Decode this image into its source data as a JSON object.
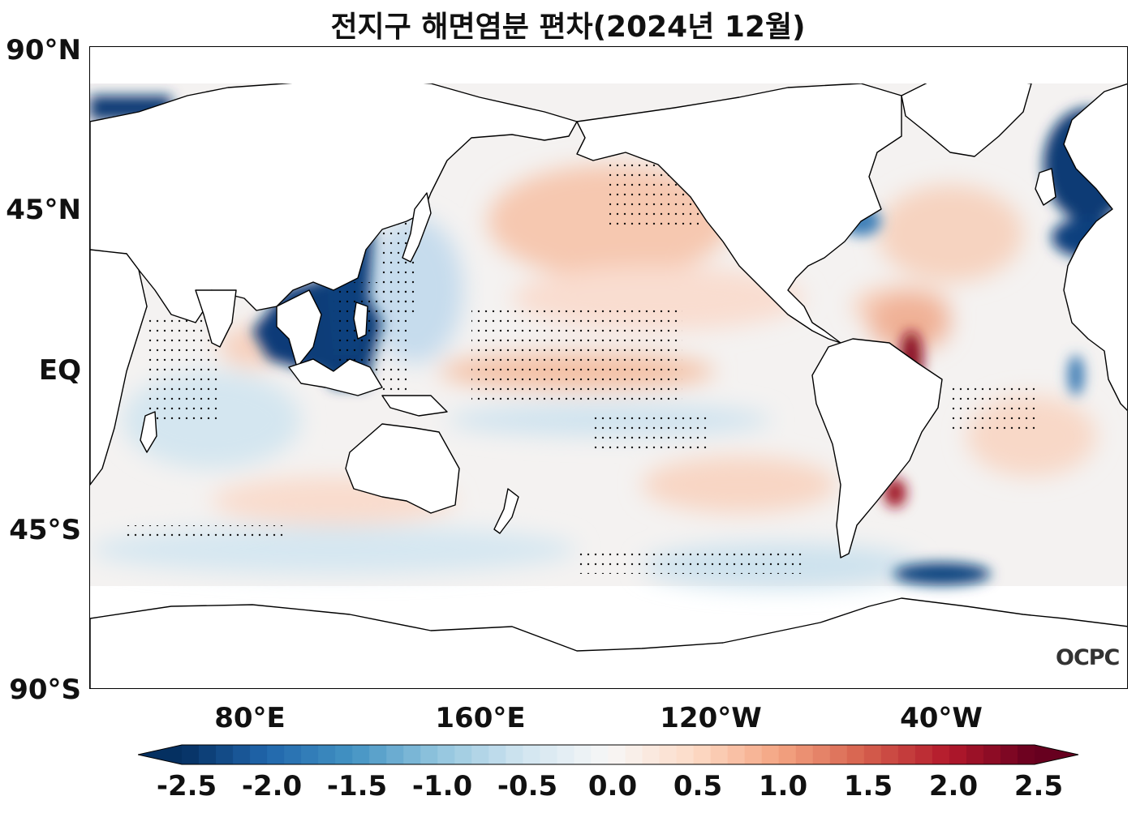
{
  "title": "전지구 해면염분 편차(2024년 12월)",
  "logo_text": "OCPC",
  "y_axis": {
    "ticks": [
      "90°N",
      "45°N",
      "EQ",
      "45°S",
      "90°S"
    ],
    "range": [
      -90,
      90
    ]
  },
  "x_axis": {
    "ticks": [
      "80°E",
      "160°E",
      "120°W",
      "40°W"
    ],
    "range_degrees_east": [
      25,
      385
    ]
  },
  "colorbar": {
    "ticks": [
      "-2.5",
      "-2.0",
      "-1.5",
      "-1.0",
      "-0.5",
      "0.0",
      "0.5",
      "1.0",
      "1.5",
      "2.0",
      "2.5"
    ],
    "range": [
      -2.5,
      2.5
    ],
    "colormap": "RdBu_r",
    "extend": "both",
    "colors": [
      "#053061",
      "#2166ac",
      "#4393c3",
      "#92c5de",
      "#d1e5f0",
      "#f7f7f7",
      "#fddbc7",
      "#f4a582",
      "#d6604d",
      "#b2182b",
      "#67001f"
    ]
  },
  "land_color": "#ffffff",
  "coastline_color": "#000000"
}
